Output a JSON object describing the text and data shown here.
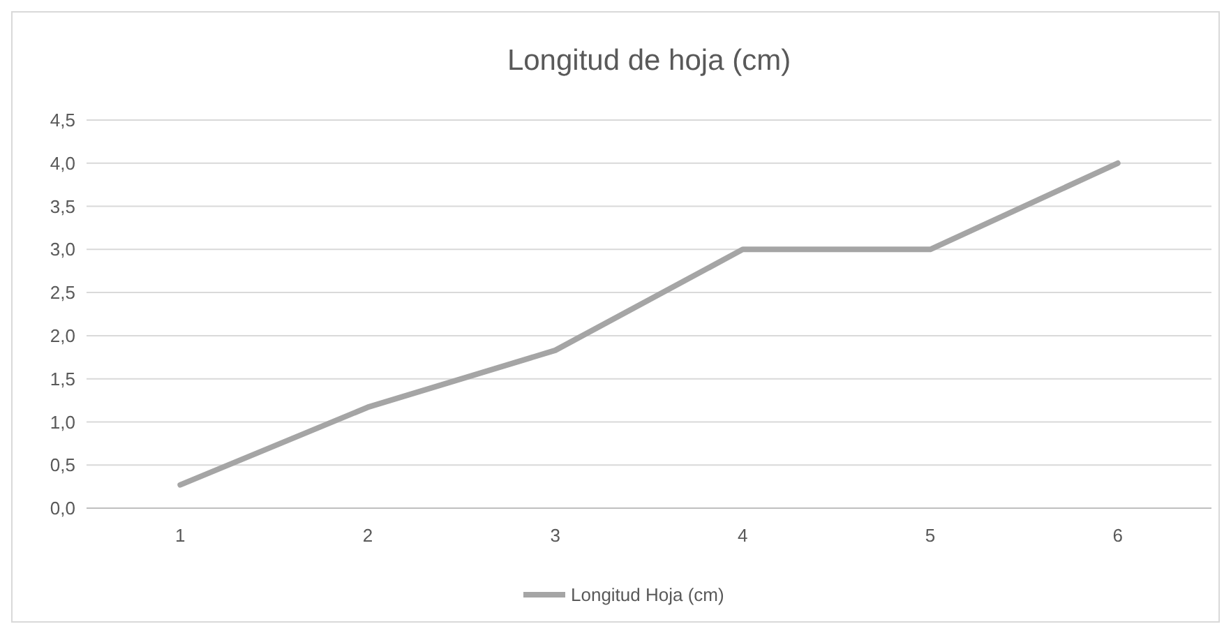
{
  "chart_data": {
    "type": "line",
    "title": "Longitud de hoja (cm)",
    "categories": [
      "1",
      "2",
      "3",
      "4",
      "5",
      "6"
    ],
    "series": [
      {
        "name": "Longitud Hoja (cm)",
        "color": "#a5a5a5",
        "values": [
          0.27,
          1.17,
          1.83,
          3.0,
          3.0,
          4.0
        ]
      }
    ],
    "ylim": [
      0,
      4.5
    ],
    "yticks": [
      {
        "value": 0,
        "label": "0,0"
      },
      {
        "value": 0.5,
        "label": "0,5"
      },
      {
        "value": 1,
        "label": "1,0"
      },
      {
        "value": 1.5,
        "label": "1,5"
      },
      {
        "value": 2,
        "label": "2,0"
      },
      {
        "value": 2.5,
        "label": "2,5"
      },
      {
        "value": 3,
        "label": "3,0"
      },
      {
        "value": 3.5,
        "label": "3,5"
      },
      {
        "value": 4,
        "label": "4,0"
      },
      {
        "value": 4.5,
        "label": "4,5"
      }
    ],
    "grid": "y",
    "legend": "bottom",
    "marker": "none",
    "line_style": "solid"
  }
}
